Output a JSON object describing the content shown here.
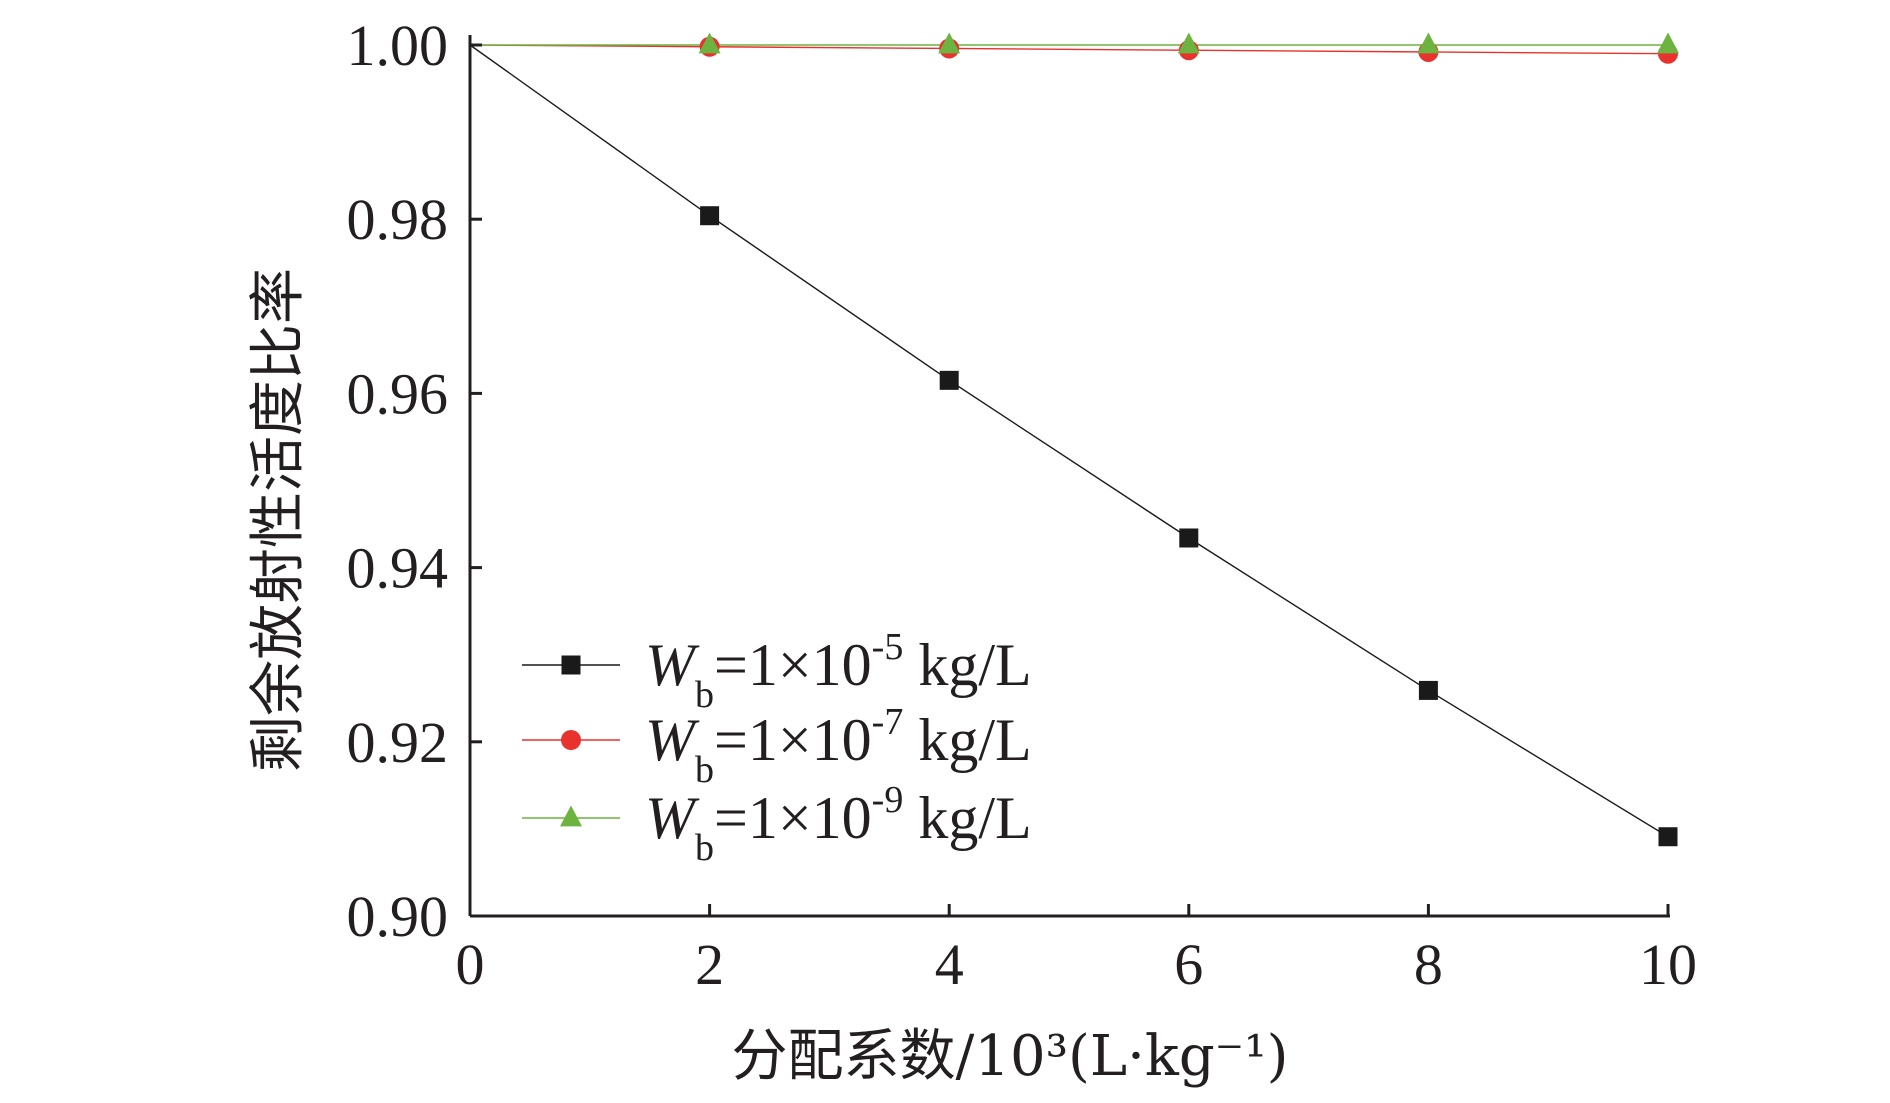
{
  "chart_data": {
    "type": "line",
    "title": "",
    "xlabel": "分配系数/10³(L·kg⁻¹)",
    "ylabel": "剩余放射性活度比率",
    "xlim": [
      0,
      10
    ],
    "ylim": [
      0.9,
      1.0
    ],
    "x_ticks": [
      "0",
      "2",
      "4",
      "6",
      "8",
      "10"
    ],
    "y_ticks": [
      "0.90",
      "0.92",
      "0.94",
      "0.96",
      "0.98",
      "1.00"
    ],
    "grid": false,
    "legend_position": "bottom-left",
    "x": [
      0,
      2,
      4,
      6,
      8,
      10
    ],
    "series": [
      {
        "name": "Wb=1×10-5 kg/L",
        "legend": {
          "var": "W",
          "sub": "b",
          "base": "=1×10",
          "exp": "-5",
          "unit": " kg/L"
        },
        "marker": "square",
        "color": "#1a1a1a",
        "values": [
          1.0,
          0.9804,
          0.9615,
          0.9434,
          0.9259,
          0.9091
        ]
      },
      {
        "name": "Wb=1×10-7 kg/L",
        "legend": {
          "var": "W",
          "sub": "b",
          "base": "=1×10",
          "exp": "-7",
          "unit": " kg/L"
        },
        "marker": "circle",
        "color": "#e8322d",
        "values": [
          1.0,
          0.9998,
          0.9996,
          0.9994,
          0.9992,
          0.999
        ]
      },
      {
        "name": "Wb=1×10-9 kg/L",
        "legend": {
          "var": "W",
          "sub": "b",
          "base": "=1×10",
          "exp": "-9",
          "unit": " kg/L"
        },
        "marker": "triangle",
        "color": "#6cb33f",
        "values": [
          1.0,
          1.0,
          1.0,
          1.0,
          1.0,
          1.0
        ]
      }
    ]
  }
}
